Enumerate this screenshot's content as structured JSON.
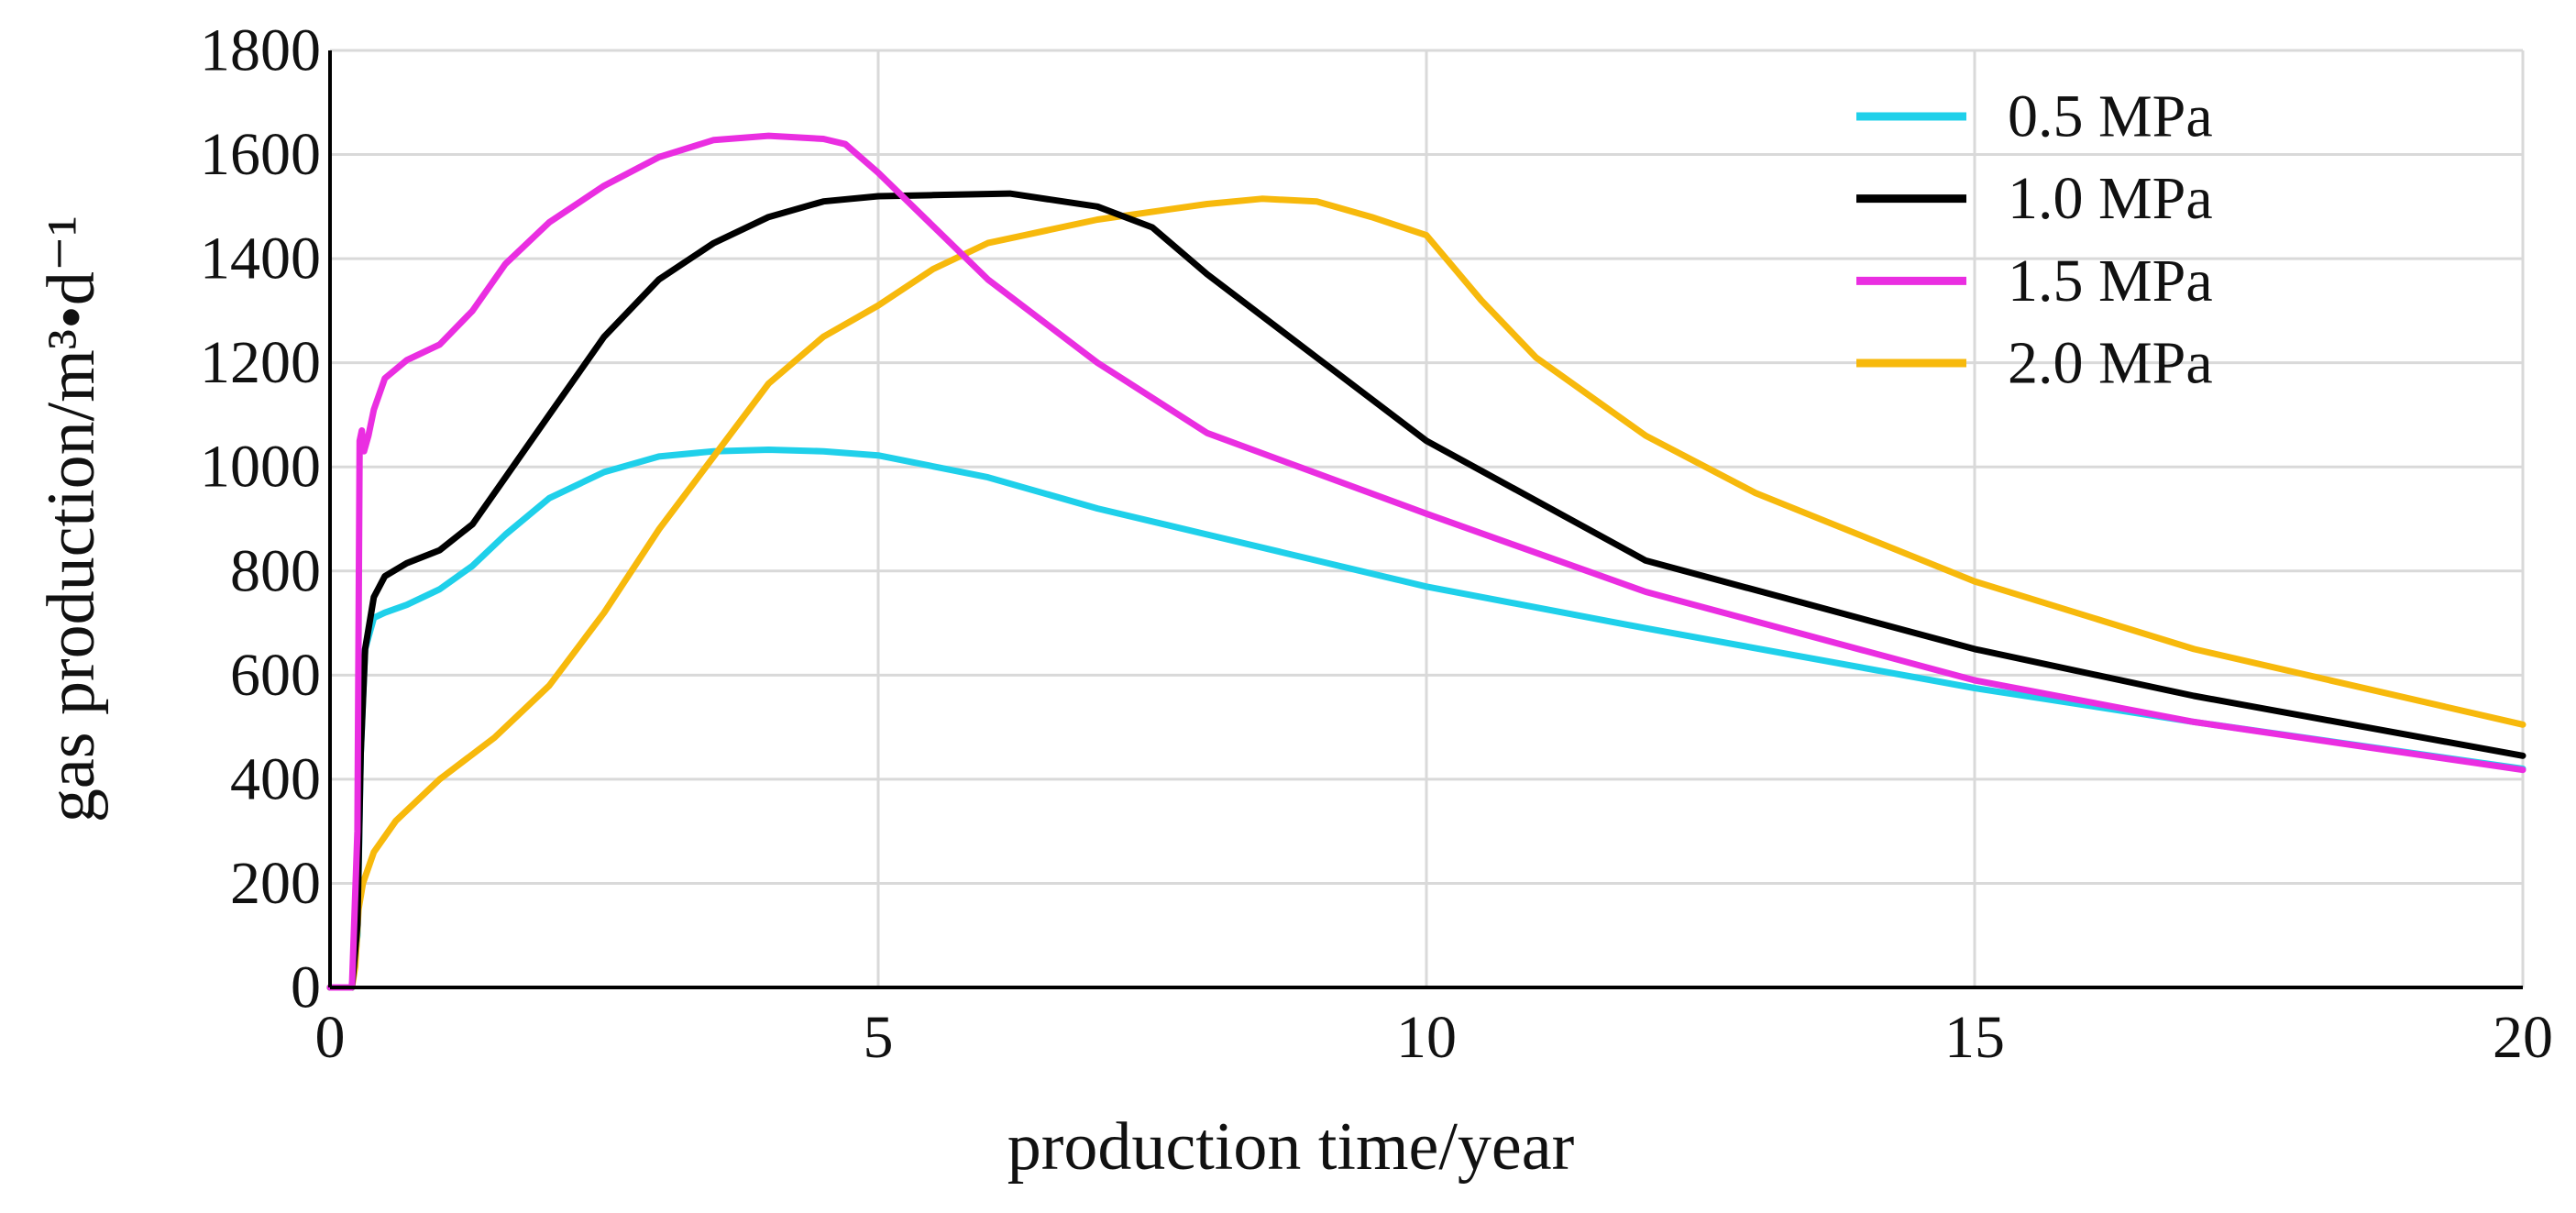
{
  "chart_data": {
    "type": "line",
    "title": "",
    "xlabel": "production time/year",
    "ylabel": "gas production/m³•d⁻¹",
    "xlim": [
      0,
      20
    ],
    "ylim": [
      0,
      1800
    ],
    "xticks": [
      0,
      5,
      10,
      15,
      20
    ],
    "xtick_labels": [
      "0",
      "5",
      "10",
      "15",
      "20"
    ],
    "yticks": [
      0,
      200,
      400,
      600,
      800,
      1000,
      1200,
      1400,
      1600,
      1800
    ],
    "ytick_labels": [
      "0",
      "200",
      "400",
      "600",
      "800",
      "1000",
      "1200",
      "1400",
      "1600",
      "1800"
    ],
    "grid": true,
    "legend_position": "top-right",
    "series": [
      {
        "name": "0.5 MPa",
        "color": "#1fd0ea",
        "points": [
          [
            0,
            0
          ],
          [
            0.2,
            0
          ],
          [
            0.25,
            100
          ],
          [
            0.28,
            450
          ],
          [
            0.32,
            650
          ],
          [
            0.4,
            710
          ],
          [
            0.5,
            720
          ],
          [
            0.7,
            735
          ],
          [
            1.0,
            765
          ],
          [
            1.3,
            810
          ],
          [
            1.6,
            870
          ],
          [
            2.0,
            940
          ],
          [
            2.5,
            990
          ],
          [
            3.0,
            1020
          ],
          [
            3.5,
            1030
          ],
          [
            4.0,
            1033
          ],
          [
            4.5,
            1030
          ],
          [
            5.0,
            1022
          ],
          [
            6.0,
            980
          ],
          [
            7.0,
            920
          ],
          [
            8.0,
            870
          ],
          [
            10.0,
            770
          ],
          [
            12.0,
            690
          ],
          [
            15.0,
            575
          ],
          [
            17.0,
            510
          ],
          [
            20.0,
            420
          ]
        ]
      },
      {
        "name": "1.0 MPa",
        "color": "#000000",
        "points": [
          [
            0,
            0
          ],
          [
            0.2,
            0
          ],
          [
            0.25,
            120
          ],
          [
            0.28,
            450
          ],
          [
            0.32,
            650
          ],
          [
            0.4,
            750
          ],
          [
            0.5,
            790
          ],
          [
            0.7,
            815
          ],
          [
            1.0,
            840
          ],
          [
            1.3,
            890
          ],
          [
            1.6,
            980
          ],
          [
            2.0,
            1100
          ],
          [
            2.5,
            1250
          ],
          [
            3.0,
            1360
          ],
          [
            3.5,
            1430
          ],
          [
            4.0,
            1480
          ],
          [
            4.5,
            1510
          ],
          [
            5.0,
            1520
          ],
          [
            5.5,
            1522
          ],
          [
            6.2,
            1525
          ],
          [
            7.0,
            1500
          ],
          [
            7.5,
            1460
          ],
          [
            8.0,
            1370
          ],
          [
            9.0,
            1210
          ],
          [
            10.0,
            1050
          ],
          [
            12.0,
            820
          ],
          [
            15.0,
            650
          ],
          [
            17.0,
            560
          ],
          [
            20.0,
            445
          ]
        ]
      },
      {
        "name": "1.5 MPa",
        "color": "#ea2ee1",
        "points": [
          [
            0,
            0
          ],
          [
            0.2,
            0
          ],
          [
            0.25,
            300
          ],
          [
            0.27,
            1050
          ],
          [
            0.29,
            1070
          ],
          [
            0.31,
            1030
          ],
          [
            0.35,
            1060
          ],
          [
            0.4,
            1110
          ],
          [
            0.5,
            1170
          ],
          [
            0.7,
            1205
          ],
          [
            1.0,
            1235
          ],
          [
            1.3,
            1300
          ],
          [
            1.6,
            1390
          ],
          [
            2.0,
            1470
          ],
          [
            2.5,
            1540
          ],
          [
            3.0,
            1595
          ],
          [
            3.5,
            1628
          ],
          [
            4.0,
            1636
          ],
          [
            4.5,
            1630
          ],
          [
            4.7,
            1620
          ],
          [
            5.0,
            1565
          ],
          [
            6.0,
            1360
          ],
          [
            7.0,
            1200
          ],
          [
            8.0,
            1065
          ],
          [
            10.0,
            910
          ],
          [
            12.0,
            760
          ],
          [
            15.0,
            590
          ],
          [
            17.0,
            510
          ],
          [
            20.0,
            418
          ]
        ]
      },
      {
        "name": "2.0 MPa",
        "color": "#f7b90c",
        "points": [
          [
            0,
            0
          ],
          [
            0.2,
            0
          ],
          [
            0.23,
            40
          ],
          [
            0.26,
            150
          ],
          [
            0.3,
            200
          ],
          [
            0.4,
            260
          ],
          [
            0.6,
            320
          ],
          [
            1.0,
            400
          ],
          [
            1.5,
            480
          ],
          [
            2.0,
            580
          ],
          [
            2.5,
            720
          ],
          [
            3.0,
            880
          ],
          [
            3.5,
            1020
          ],
          [
            4.0,
            1160
          ],
          [
            4.5,
            1250
          ],
          [
            5.0,
            1310
          ],
          [
            5.5,
            1380
          ],
          [
            6.0,
            1430
          ],
          [
            7.0,
            1475
          ],
          [
            8.0,
            1505
          ],
          [
            8.5,
            1515
          ],
          [
            9.0,
            1510
          ],
          [
            9.5,
            1480
          ],
          [
            10.0,
            1445
          ],
          [
            10.5,
            1320
          ],
          [
            11.0,
            1210
          ],
          [
            12.0,
            1060
          ],
          [
            13.0,
            950
          ],
          [
            15.0,
            780
          ],
          [
            17.0,
            650
          ],
          [
            20.0,
            505
          ]
        ]
      }
    ]
  }
}
